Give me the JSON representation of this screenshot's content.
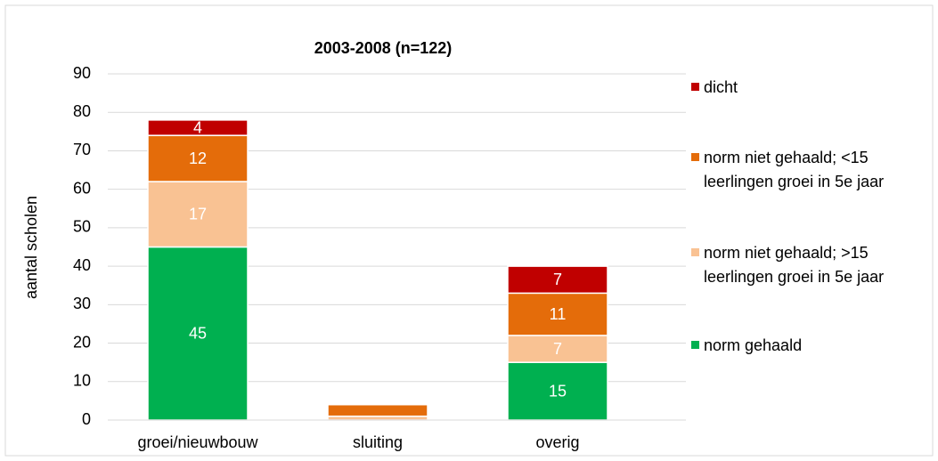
{
  "chart_data": {
    "type": "stacked_bar",
    "title": "2003-2008 (n=122)",
    "y_label": "aantal scholen",
    "categories": [
      "groei/nieuwbouw",
      "sluiting",
      "overig"
    ],
    "series": [
      {
        "name": "norm gehaald",
        "color": "#00b050",
        "values": [
          45,
          0,
          15
        ],
        "value_labels": [
          "45",
          null,
          "15"
        ]
      },
      {
        "name": "norm niet gehaald; >15 leerlingen groei in 5e jaar",
        "color": "#f9c293",
        "values": [
          17,
          1,
          7
        ],
        "value_labels": [
          "17",
          null,
          "7"
        ]
      },
      {
        "name": "norm niet gehaald; <15 leerlingen groei in 5e jaar",
        "color": "#e46c0a",
        "values": [
          12,
          3,
          11
        ],
        "value_labels": [
          "12",
          null,
          "11"
        ]
      },
      {
        "name": "dicht",
        "color": "#c00000",
        "values": [
          4,
          0,
          7
        ],
        "value_labels": [
          "4",
          null,
          "7"
        ]
      }
    ],
    "ylim": [
      0,
      90
    ],
    "yticks": [
      0,
      10,
      20,
      30,
      40,
      50,
      60,
      70,
      80,
      90
    ],
    "grid": true,
    "legend": "right"
  }
}
